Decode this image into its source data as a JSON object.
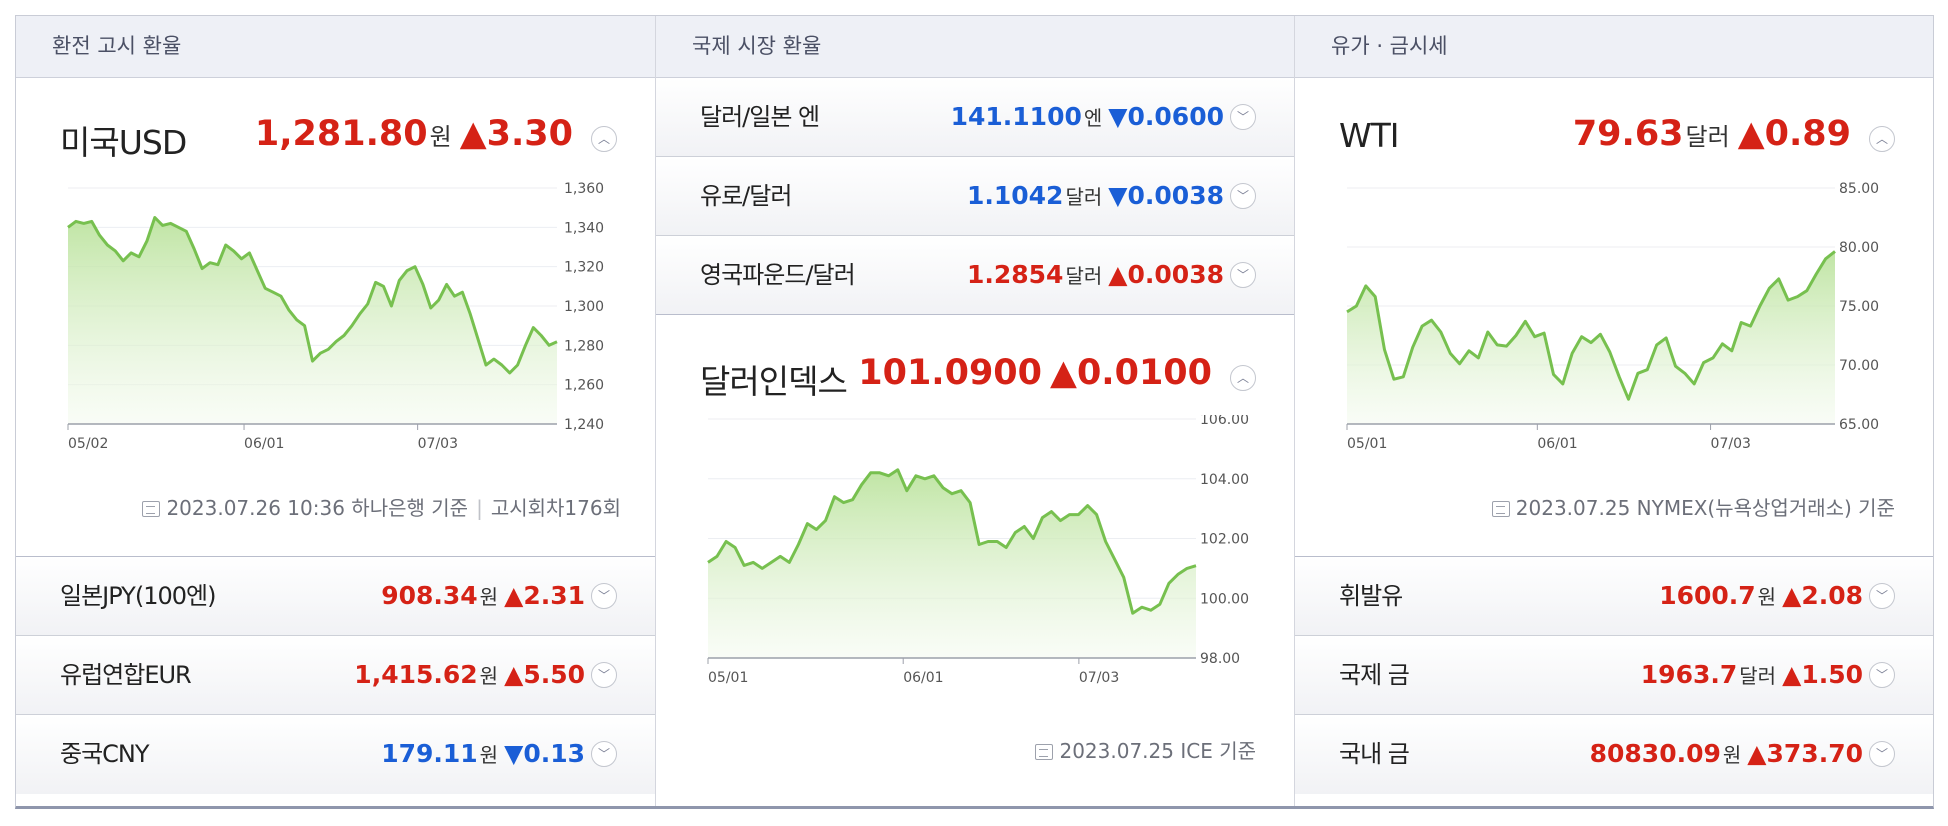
{
  "colors": {
    "up": "#d52216",
    "down": "#1a5ed6",
    "line": "#77c04f"
  },
  "col1": {
    "header": "환전 고시 환율",
    "main": {
      "name": "미국USD",
      "value": "1,281.80",
      "unit": "원",
      "dir": "up",
      "change": "3.30",
      "source": "2023.07.26 10:36 하나은행 기준",
      "source2": "고시회차176회"
    },
    "rows": [
      {
        "name": "일본JPY(100엔)",
        "value": "908.34",
        "unit": "원",
        "dir": "up",
        "change": "2.31"
      },
      {
        "name": "유럽연합EUR",
        "value": "1,415.62",
        "unit": "원",
        "dir": "up",
        "change": "5.50"
      },
      {
        "name": "중국CNY",
        "value": "179.11",
        "unit": "원",
        "dir": "down",
        "change": "0.13"
      }
    ]
  },
  "col2": {
    "header": "국제 시장 환율",
    "rows": [
      {
        "name": "달러/일본 엔",
        "value": "141.1100",
        "unit": "엔",
        "dir": "down",
        "change": "0.0600"
      },
      {
        "name": "유로/달러",
        "value": "1.1042",
        "unit": "달러",
        "dir": "down",
        "change": "0.0038"
      },
      {
        "name": "영국파운드/달러",
        "value": "1.2854",
        "unit": "달러",
        "dir": "up",
        "change": "0.0038"
      }
    ],
    "main": {
      "name": "달러인덱스",
      "value": "101.0900",
      "unit": "",
      "dir": "up",
      "change": "0.0100",
      "source": "2023.07.25 ICE 기준"
    }
  },
  "col3": {
    "header": "유가 · 금시세",
    "main": {
      "name": "WTI",
      "value": "79.63",
      "unit": "달러",
      "dir": "up",
      "change": "0.89",
      "source": "2023.07.25 NYMEX(뉴욕상업거래소) 기준"
    },
    "rows": [
      {
        "name": "휘발유",
        "value": "1600.7",
        "unit": "원",
        "dir": "up",
        "change": "2.08"
      },
      {
        "name": "국제 금",
        "value": "1963.7",
        "unit": "달러",
        "dir": "up",
        "change": "1.50"
      },
      {
        "name": "국내 금",
        "value": "80830.09",
        "unit": "원",
        "dir": "up",
        "change": "373.70"
      }
    ]
  },
  "chart_data": [
    {
      "type": "area",
      "y_ticks": [
        "1,360",
        "1,340",
        "1,320",
        "1,300",
        "1,280",
        "1,260",
        "1,240"
      ],
      "ylim": [
        1240,
        1360
      ],
      "x_ticks": [
        {
          "label": "05/02",
          "t": 0.0
        },
        {
          "label": "06/01",
          "t": 0.36
        },
        {
          "label": "07/03",
          "t": 0.715
        }
      ],
      "values": [
        1340,
        1343,
        1342,
        1343,
        1336,
        1331,
        1328,
        1323,
        1327,
        1325,
        1333,
        1345,
        1341,
        1342,
        1340,
        1338,
        1329,
        1319,
        1322,
        1321,
        1331,
        1328,
        1324,
        1327,
        1318,
        1309,
        1307,
        1305,
        1298,
        1293,
        1290,
        1272,
        1276,
        1278,
        1282,
        1285,
        1290,
        1296,
        1301,
        1312,
        1310,
        1300,
        1313,
        1318,
        1320,
        1311,
        1299,
        1303,
        1311,
        1305,
        1307,
        1296,
        1283,
        1270,
        1273,
        1270,
        1266,
        1270,
        1280,
        1289,
        1285,
        1280,
        1281.8
      ]
    },
    {
      "type": "area",
      "y_ticks": [
        "106.00",
        "104.00",
        "102.00",
        "100.00",
        "98.00"
      ],
      "ylim": [
        98,
        106
      ],
      "x_ticks": [
        {
          "label": "05/01",
          "t": 0.0
        },
        {
          "label": "06/01",
          "t": 0.4
        },
        {
          "label": "07/03",
          "t": 0.76
        }
      ],
      "values": [
        101.2,
        101.4,
        101.9,
        101.7,
        101.1,
        101.2,
        101.0,
        101.2,
        101.4,
        101.2,
        101.8,
        102.5,
        102.3,
        102.6,
        103.4,
        103.2,
        103.3,
        103.8,
        104.2,
        104.2,
        104.1,
        104.3,
        103.6,
        104.1,
        104.0,
        104.1,
        103.7,
        103.5,
        103.6,
        103.2,
        101.8,
        101.9,
        101.9,
        101.7,
        102.2,
        102.4,
        102.0,
        102.7,
        102.9,
        102.6,
        102.8,
        102.8,
        103.1,
        102.8,
        101.9,
        101.3,
        100.7,
        99.5,
        99.7,
        99.6,
        99.8,
        100.5,
        100.8,
        101.0,
        101.09
      ]
    },
    {
      "type": "area",
      "y_ticks": [
        "85.00",
        "80.00",
        "75.00",
        "70.00",
        "65.00"
      ],
      "ylim": [
        65,
        85
      ],
      "x_ticks": [
        {
          "label": "05/01",
          "t": 0.0
        },
        {
          "label": "06/01",
          "t": 0.39
        },
        {
          "label": "07/03",
          "t": 0.745
        }
      ],
      "values": [
        74.5,
        75.0,
        76.7,
        75.8,
        71.3,
        68.8,
        69.0,
        71.5,
        73.3,
        73.8,
        72.8,
        71.0,
        70.1,
        71.2,
        70.6,
        72.8,
        71.7,
        71.6,
        72.5,
        73.7,
        72.4,
        72.7,
        69.2,
        68.4,
        71.0,
        72.4,
        71.9,
        72.6,
        71.1,
        69.0,
        67.1,
        69.3,
        69.6,
        71.7,
        72.3,
        69.9,
        69.3,
        68.4,
        70.2,
        70.6,
        71.8,
        71.2,
        73.6,
        73.3,
        75.0,
        76.5,
        77.3,
        75.5,
        75.8,
        76.3,
        77.7,
        79.0,
        79.63
      ]
    }
  ]
}
